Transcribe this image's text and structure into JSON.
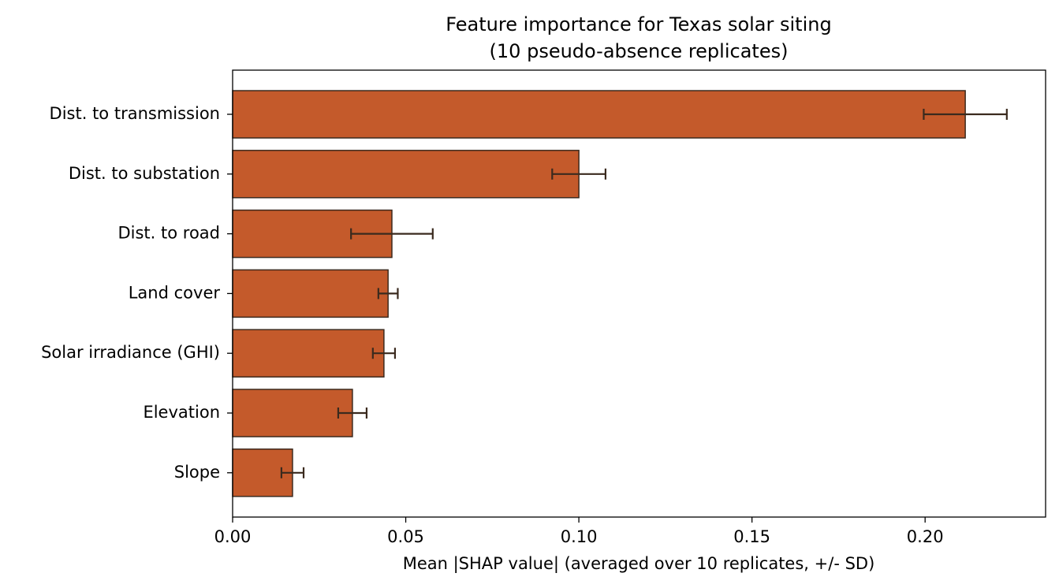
{
  "chart_data": {
    "type": "barh",
    "title": "Feature importance for Texas solar siting",
    "subtitle": "(10 pseudo-absence replicates)",
    "xlabel": "Mean |SHAP value|  (averaged over 10 replicates, +/- SD)",
    "categories": [
      "Dist. to transmission",
      "Dist. to substation",
      "Dist. to road",
      "Land cover",
      "Solar irradiance (GHI)",
      "Elevation",
      "Slope"
    ],
    "values": [
      0.2116,
      0.1,
      0.046,
      0.0449,
      0.0437,
      0.0346,
      0.0173
    ],
    "errors": [
      0.012,
      0.0077,
      0.0118,
      0.0028,
      0.0032,
      0.0041,
      0.0032
    ],
    "color": "#c45a2b",
    "edgecolor": "#3d2a1e",
    "errorcolor": "#3a2a1e",
    "xlim": [
      0,
      0.2348
    ],
    "xticks": [
      {
        "value": 0,
        "label": "0.00"
      },
      {
        "value": 0.05,
        "label": "0.05"
      },
      {
        "value": 0.1,
        "label": "0.10"
      },
      {
        "value": 0.15,
        "label": "0.15"
      },
      {
        "value": 0.2,
        "label": "0.20"
      }
    ],
    "grid": false
  }
}
